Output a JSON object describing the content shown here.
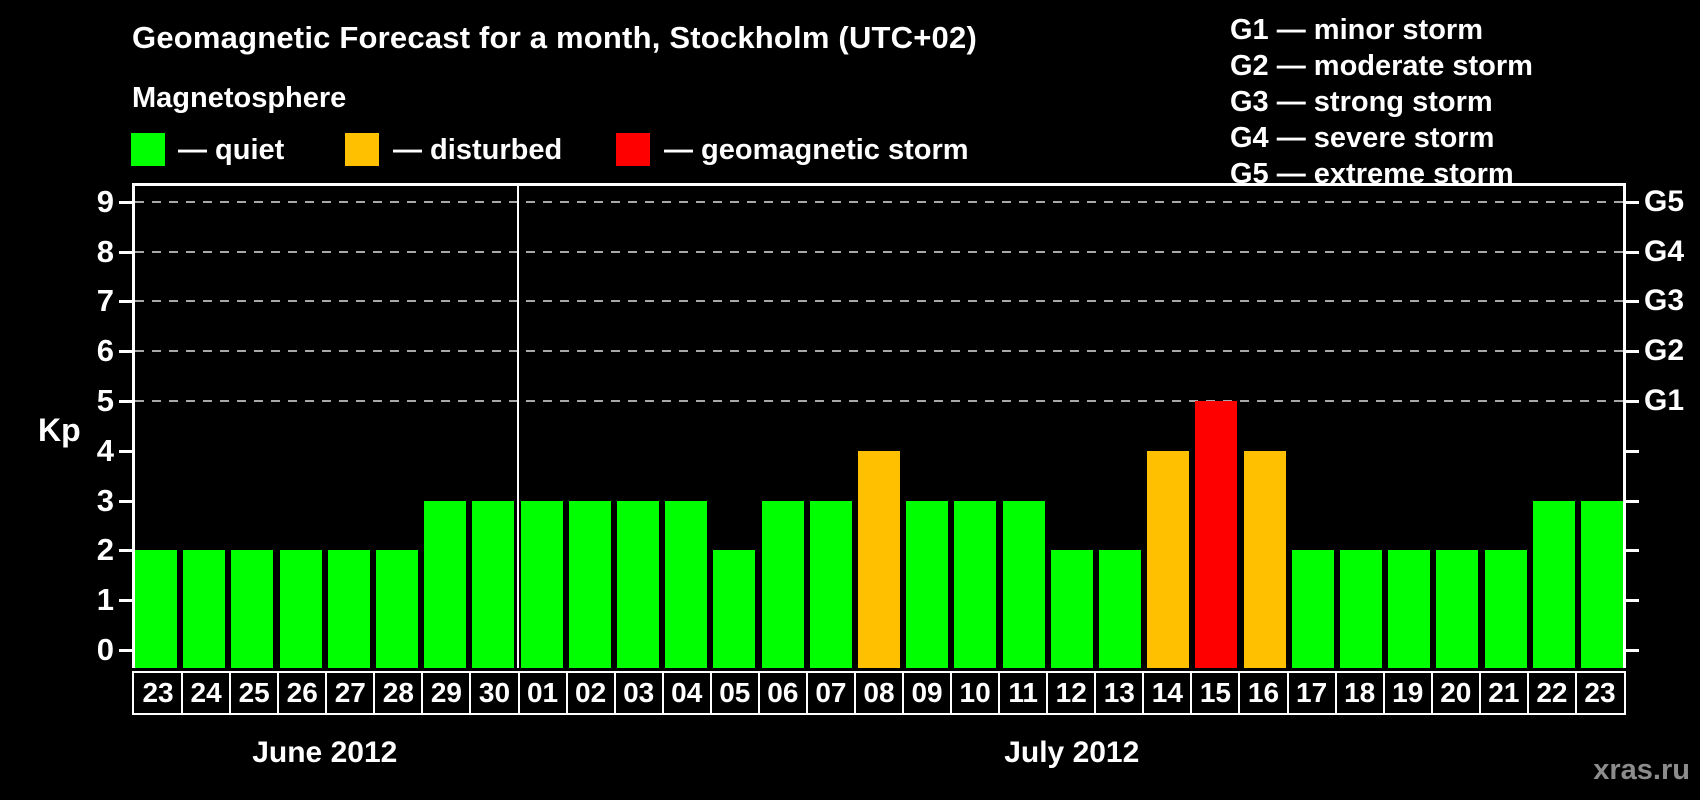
{
  "header": {
    "title": "Geomagnetic Forecast for a month, Stockholm (UTC+02)"
  },
  "magnetosphere_legend": {
    "title": "Magnetosphere",
    "items": [
      {
        "status": "quiet",
        "label": "— quiet"
      },
      {
        "status": "disturbed",
        "label": "— disturbed"
      },
      {
        "status": "storm",
        "label": "— geomagnetic storm"
      }
    ]
  },
  "storm_scale_legend": {
    "items": [
      "G1 — minor storm",
      "G2 — moderate storm",
      "G3 — strong storm",
      "G4 — severe storm",
      "G5 — extreme storm"
    ]
  },
  "watermark": "xras.ru",
  "chart_data": {
    "type": "bar",
    "title": "Geomagnetic Forecast for a month, Stockholm (UTC+02)",
    "ylabel": "Kp",
    "ylim": [
      0,
      9.4
    ],
    "yticks": [
      0,
      1,
      2,
      3,
      4,
      5,
      6,
      7,
      8,
      9
    ],
    "grid_levels": [
      5,
      6,
      7,
      8,
      9
    ],
    "grid_on": true,
    "right_axis": [
      {
        "kp": 5,
        "label": "G1"
      },
      {
        "kp": 6,
        "label": "G2"
      },
      {
        "kp": 7,
        "label": "G3"
      },
      {
        "kp": 8,
        "label": "G4"
      },
      {
        "kp": 9,
        "label": "G5"
      }
    ],
    "status_colors": {
      "quiet": "#00ff00",
      "disturbed": "#ffc000",
      "storm": "#ff0000"
    },
    "background_color": "#000000",
    "months": [
      {
        "label": "June 2012",
        "days": [
          {
            "day": "23",
            "kp": 2,
            "status": "quiet"
          },
          {
            "day": "24",
            "kp": 2,
            "status": "quiet"
          },
          {
            "day": "25",
            "kp": 2,
            "status": "quiet"
          },
          {
            "day": "26",
            "kp": 2,
            "status": "quiet"
          },
          {
            "day": "27",
            "kp": 2,
            "status": "quiet"
          },
          {
            "day": "28",
            "kp": 2,
            "status": "quiet"
          },
          {
            "day": "29",
            "kp": 3,
            "status": "quiet"
          },
          {
            "day": "30",
            "kp": 3,
            "status": "quiet"
          }
        ]
      },
      {
        "label": "July 2012",
        "days": [
          {
            "day": "01",
            "kp": 3,
            "status": "quiet"
          },
          {
            "day": "02",
            "kp": 3,
            "status": "quiet"
          },
          {
            "day": "03",
            "kp": 3,
            "status": "quiet"
          },
          {
            "day": "04",
            "kp": 3,
            "status": "quiet"
          },
          {
            "day": "05",
            "kp": 2,
            "status": "quiet"
          },
          {
            "day": "06",
            "kp": 3,
            "status": "quiet"
          },
          {
            "day": "07",
            "kp": 3,
            "status": "quiet"
          },
          {
            "day": "08",
            "kp": 4,
            "status": "disturbed"
          },
          {
            "day": "09",
            "kp": 3,
            "status": "quiet"
          },
          {
            "day": "10",
            "kp": 3,
            "status": "quiet"
          },
          {
            "day": "11",
            "kp": 3,
            "status": "quiet"
          },
          {
            "day": "12",
            "kp": 2,
            "status": "quiet"
          },
          {
            "day": "13",
            "kp": 2,
            "status": "quiet"
          },
          {
            "day": "14",
            "kp": 4,
            "status": "disturbed"
          },
          {
            "day": "15",
            "kp": 5,
            "status": "storm"
          },
          {
            "day": "16",
            "kp": 4,
            "status": "disturbed"
          },
          {
            "day": "17",
            "kp": 2,
            "status": "quiet"
          },
          {
            "day": "18",
            "kp": 2,
            "status": "quiet"
          },
          {
            "day": "19",
            "kp": 2,
            "status": "quiet"
          },
          {
            "day": "20",
            "kp": 2,
            "status": "quiet"
          },
          {
            "day": "21",
            "kp": 2,
            "status": "quiet"
          },
          {
            "day": "22",
            "kp": 3,
            "status": "quiet"
          },
          {
            "day": "23",
            "kp": 3,
            "status": "quiet"
          }
        ]
      }
    ]
  }
}
